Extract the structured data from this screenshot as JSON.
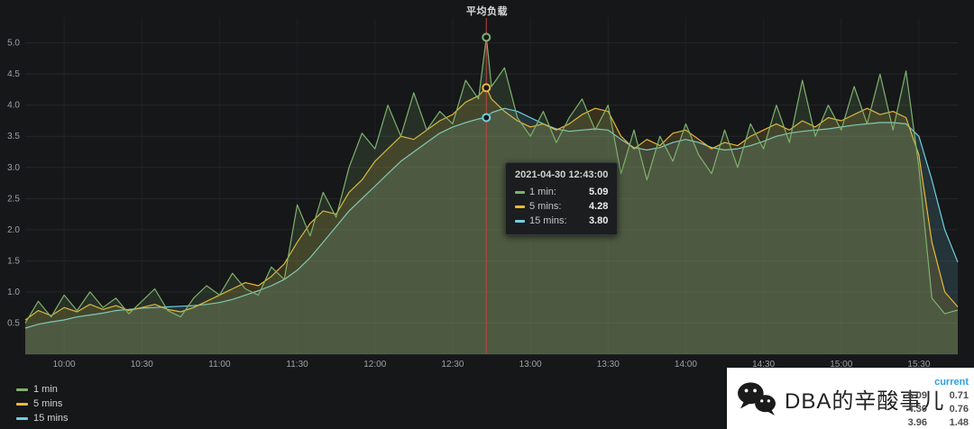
{
  "title": "平均负载",
  "tooltip": {
    "timestamp": "2021-04-30 12:43:00",
    "rows": [
      {
        "label": "1 min:",
        "value": "5.09",
        "color": "#7EB26D"
      },
      {
        "label": "5 mins:",
        "value": "4.28",
        "color": "#EAB839"
      },
      {
        "label": "15 mins:",
        "value": "3.80",
        "color": "#6ED0E0"
      }
    ]
  },
  "legend": {
    "current_header": "current",
    "rows": [
      {
        "label": "1 min",
        "color": "#7EB26D",
        "max": "5.09",
        "current": "0.71"
      },
      {
        "label": "5 mins",
        "color": "#EAB839",
        "max": "4.30",
        "current": "0.76"
      },
      {
        "label": "15 mins",
        "color": "#6ED0E0",
        "max": "3.96",
        "current": "1.48"
      }
    ]
  },
  "watermark": {
    "text": "DBA的辛酸事儿"
  },
  "chart_data": {
    "type": "line",
    "title": "平均负载",
    "x_unit": "minutes since 09:45",
    "xlim": [
      0,
      360
    ],
    "ylim": [
      0,
      5.4
    ],
    "x_tick_positions": [
      15,
      45,
      75,
      105,
      135,
      165,
      195,
      225,
      255,
      285,
      315,
      345
    ],
    "x_tick_labels": [
      "10:00",
      "10:30",
      "11:00",
      "11:30",
      "12:00",
      "12:30",
      "13:00",
      "13:30",
      "14:00",
      "14:30",
      "15:00",
      "15:30"
    ],
    "y_ticks": [
      0.5,
      1.0,
      1.5,
      2.0,
      2.5,
      3.0,
      3.5,
      4.0,
      4.5,
      5.0
    ],
    "crosshair_x": 178,
    "crosshair_color": "#c14343",
    "grid": true,
    "legend_position": "bottom-left",
    "x": [
      0,
      5,
      10,
      15,
      20,
      25,
      30,
      35,
      40,
      45,
      50,
      55,
      60,
      65,
      70,
      75,
      80,
      85,
      90,
      95,
      100,
      105,
      110,
      115,
      120,
      125,
      130,
      135,
      140,
      145,
      150,
      155,
      160,
      165,
      170,
      175,
      178,
      180,
      185,
      190,
      195,
      200,
      205,
      210,
      215,
      220,
      225,
      230,
      235,
      240,
      245,
      250,
      255,
      260,
      265,
      270,
      275,
      280,
      285,
      290,
      295,
      300,
      305,
      310,
      315,
      320,
      325,
      330,
      335,
      340,
      345,
      350,
      355,
      360
    ],
    "series": [
      {
        "name": "1 min",
        "color": "#7EB26D",
        "values": [
          0.5,
          0.85,
          0.6,
          0.95,
          0.7,
          1.0,
          0.75,
          0.9,
          0.65,
          0.85,
          1.05,
          0.7,
          0.6,
          0.9,
          1.1,
          0.95,
          1.3,
          1.05,
          0.95,
          1.4,
          1.2,
          2.4,
          1.9,
          2.6,
          2.2,
          3.0,
          3.55,
          3.3,
          4.0,
          3.5,
          4.2,
          3.6,
          3.9,
          3.7,
          4.4,
          4.1,
          5.09,
          4.3,
          4.6,
          3.8,
          3.5,
          3.9,
          3.4,
          3.8,
          4.1,
          3.6,
          4.0,
          2.9,
          3.6,
          2.8,
          3.5,
          3.1,
          3.7,
          3.2,
          2.9,
          3.6,
          3.0,
          3.7,
          3.3,
          4.0,
          3.4,
          4.4,
          3.5,
          4.0,
          3.6,
          4.3,
          3.7,
          4.5,
          3.6,
          4.55,
          3.0,
          0.9,
          0.65,
          0.71
        ]
      },
      {
        "name": "5 mins",
        "color": "#EAB839",
        "values": [
          0.55,
          0.7,
          0.62,
          0.75,
          0.68,
          0.8,
          0.72,
          0.78,
          0.7,
          0.75,
          0.8,
          0.72,
          0.68,
          0.75,
          0.85,
          0.95,
          1.05,
          1.15,
          1.1,
          1.25,
          1.45,
          1.8,
          2.1,
          2.3,
          2.25,
          2.6,
          2.8,
          3.1,
          3.3,
          3.5,
          3.45,
          3.6,
          3.75,
          3.85,
          4.05,
          4.15,
          4.28,
          4.1,
          3.9,
          3.75,
          3.65,
          3.7,
          3.6,
          3.7,
          3.85,
          3.95,
          3.9,
          3.5,
          3.3,
          3.45,
          3.35,
          3.55,
          3.6,
          3.45,
          3.3,
          3.4,
          3.35,
          3.5,
          3.6,
          3.7,
          3.6,
          3.75,
          3.65,
          3.8,
          3.75,
          3.85,
          3.95,
          3.85,
          3.9,
          3.8,
          3.2,
          1.8,
          1.0,
          0.76
        ]
      },
      {
        "name": "15 mins",
        "color": "#6ED0E0",
        "values": [
          0.42,
          0.48,
          0.52,
          0.55,
          0.6,
          0.63,
          0.66,
          0.7,
          0.72,
          0.74,
          0.75,
          0.76,
          0.77,
          0.78,
          0.8,
          0.83,
          0.88,
          0.95,
          1.02,
          1.1,
          1.2,
          1.35,
          1.55,
          1.8,
          2.05,
          2.3,
          2.5,
          2.7,
          2.9,
          3.1,
          3.25,
          3.4,
          3.55,
          3.65,
          3.72,
          3.78,
          3.8,
          3.88,
          3.95,
          3.9,
          3.8,
          3.7,
          3.62,
          3.58,
          3.6,
          3.62,
          3.6,
          3.45,
          3.32,
          3.28,
          3.32,
          3.4,
          3.45,
          3.4,
          3.32,
          3.28,
          3.3,
          3.35,
          3.42,
          3.5,
          3.55,
          3.58,
          3.6,
          3.62,
          3.65,
          3.68,
          3.7,
          3.72,
          3.72,
          3.7,
          3.5,
          2.8,
          2.0,
          1.48
        ]
      }
    ]
  }
}
